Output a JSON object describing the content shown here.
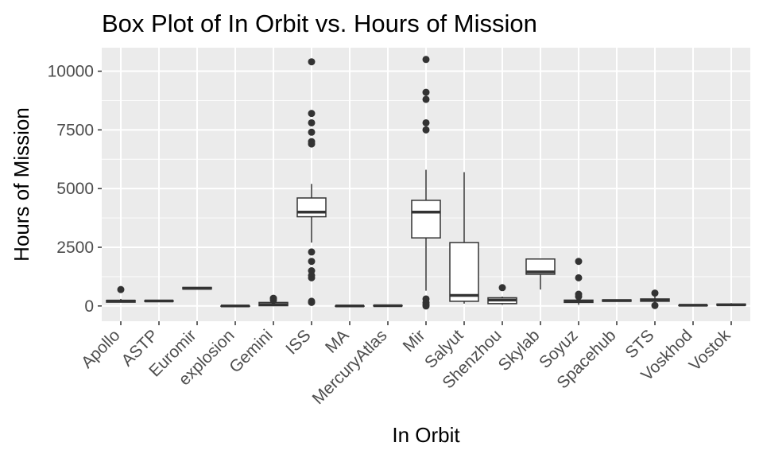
{
  "chart_data": {
    "type": "boxplot",
    "title": "Box Plot of In Orbit vs. Hours of Mission",
    "xlabel": "In Orbit",
    "ylabel": "Hours of Mission",
    "ylim": [
      -650,
      11000
    ],
    "yticks": [
      0,
      2500,
      5000,
      7500,
      10000
    ],
    "ytick_labels": [
      "0",
      "2500",
      "5000",
      "7500",
      "10000"
    ],
    "grid": true,
    "legend": "none",
    "colors": {
      "panel": "#ebebeb",
      "grid": "#ffffff",
      "box_fill": "#ffffff",
      "box_line": "#333333",
      "outlier": "#333333"
    },
    "categories": [
      "Apollo",
      "ASTP",
      "Euromir",
      "explosion",
      "Gemini",
      "ISS",
      "MA",
      "MercuryAtlas",
      "Mir",
      "Salyut",
      "Shenzhou",
      "Skylab",
      "Soyuz",
      "Spacehub",
      "STS",
      "Voskhod",
      "Vostok"
    ],
    "boxes": [
      {
        "category": "Apollo",
        "min": 150,
        "q1": 160,
        "median": 210,
        "q3": 240,
        "max": 300,
        "outliers": [
          700
        ]
      },
      {
        "category": "ASTP",
        "min": 210,
        "q1": 210,
        "median": 215,
        "q3": 220,
        "max": 225,
        "outliers": []
      },
      {
        "category": "Euromir",
        "min": 720,
        "q1": 720,
        "median": 750,
        "q3": 790,
        "max": 790,
        "outliers": []
      },
      {
        "category": "explosion",
        "min": 0,
        "q1": 0,
        "median": 0,
        "q3": 0,
        "max": 0,
        "outliers": []
      },
      {
        "category": "Gemini",
        "min": 0,
        "q1": 10,
        "median": 60,
        "q3": 150,
        "max": 200,
        "outliers": [
          330,
          250
        ]
      },
      {
        "category": "ISS",
        "min": 2700,
        "q1": 3800,
        "median": 4000,
        "q3": 4600,
        "max": 5200,
        "outliers": [
          10400,
          8200,
          7800,
          7400,
          7000,
          6900,
          2300,
          1900,
          1500,
          1300,
          1200,
          200,
          150
        ]
      },
      {
        "category": "MA",
        "min": 0,
        "q1": 0,
        "median": 0,
        "q3": 0,
        "max": 10,
        "outliers": []
      },
      {
        "category": "MercuryAtlas",
        "min": 0,
        "q1": 5,
        "median": 10,
        "q3": 20,
        "max": 30,
        "outliers": []
      },
      {
        "category": "Mir",
        "min": 650,
        "q1": 2900,
        "median": 4000,
        "q3": 4500,
        "max": 5800,
        "outliers": [
          10500,
          9100,
          8800,
          7800,
          7500,
          300,
          150,
          50,
          0
        ]
      },
      {
        "category": "Salyut",
        "min": 100,
        "q1": 200,
        "median": 450,
        "q3": 2700,
        "max": 5700,
        "outliers": []
      },
      {
        "category": "Shenzhou",
        "min": 50,
        "q1": 100,
        "median": 250,
        "q3": 350,
        "max": 400,
        "outliers": [
          780
        ]
      },
      {
        "category": "Skylab",
        "min": 700,
        "q1": 1350,
        "median": 1450,
        "q3": 2000,
        "max": 2000,
        "outliers": []
      },
      {
        "category": "Soyuz",
        "min": 50,
        "q1": 150,
        "median": 200,
        "q3": 250,
        "max": 350,
        "outliers": [
          1900,
          1200,
          500,
          400
        ]
      },
      {
        "category": "Spacehub",
        "min": 200,
        "q1": 200,
        "median": 230,
        "q3": 260,
        "max": 260,
        "outliers": []
      },
      {
        "category": "STS",
        "min": 150,
        "q1": 200,
        "median": 250,
        "q3": 300,
        "max": 400,
        "outliers": [
          550,
          20
        ]
      },
      {
        "category": "Voskhod",
        "min": 20,
        "q1": 20,
        "median": 30,
        "q3": 30,
        "max": 30,
        "outliers": []
      },
      {
        "category": "Vostok",
        "min": 25,
        "q1": 30,
        "median": 50,
        "q3": 80,
        "max": 120,
        "outliers": []
      }
    ]
  }
}
